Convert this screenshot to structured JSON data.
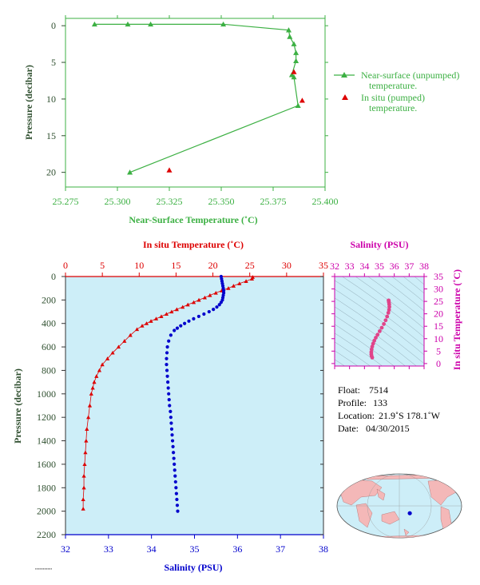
{
  "colors": {
    "green": "#3cb043",
    "axis_green": "#2f4f2f",
    "red": "#dd0000",
    "blue": "#0000cc",
    "magenta": "#cc00aa",
    "pink": "#e0448a",
    "panel_bg": "#cdeef8",
    "land": "#f4b8b8",
    "ocean": "#cdeef8"
  },
  "chart_data": [
    {
      "type": "line",
      "xlabel": "Near-Surface Temperature (˚C)",
      "ylabel": "Pressure (decibar)",
      "xlim": [
        25.275,
        25.4
      ],
      "ylim": [
        22,
        -1
      ],
      "x_ticks": [
        "25.275",
        "25.300",
        "25.325",
        "25.350",
        "25.375",
        "25.400"
      ],
      "y_ticks": [
        "0",
        "5",
        "10",
        "15",
        "20"
      ],
      "legend_placement": "right",
      "legend": [
        {
          "line1": "Near-surface (unpumped)",
          "line2": "temperature."
        },
        {
          "line1": "In situ (pumped)",
          "line2": "temperature."
        }
      ],
      "series": [
        {
          "name": "Near-surface (unpumped) temperature.",
          "x": [
            25.289,
            25.305,
            25.316,
            25.351,
            25.3825,
            25.383,
            25.385,
            25.386,
            25.386,
            25.384,
            25.385,
            25.387,
            25.306
          ],
          "y": [
            -0.2,
            -0.2,
            -0.2,
            -0.2,
            0.6,
            1.5,
            2.5,
            3.7,
            4.8,
            6.7,
            7.0,
            10.9,
            20.0
          ]
        },
        {
          "name": "In situ (pumped) temperature.",
          "x": [
            25.385,
            25.389,
            25.325
          ],
          "y": [
            6.3,
            10.2,
            19.7
          ]
        }
      ]
    },
    {
      "type": "scatter",
      "title_top": "In situ Temperature (˚C)",
      "xlabel_bottom": "Salinity (PSU)",
      "ylabel": "Pressure (decibar)",
      "temp_lim": [
        0,
        35
      ],
      "sal_lim": [
        32,
        38
      ],
      "ylim": [
        2200,
        0
      ],
      "temp_ticks": [
        "0",
        "5",
        "10",
        "15",
        "20",
        "25",
        "30",
        "35"
      ],
      "sal_ticks": [
        "32",
        "33",
        "34",
        "35",
        "36",
        "37",
        "38"
      ],
      "y_ticks": [
        "0",
        "200",
        "400",
        "600",
        "800",
        "1000",
        "1200",
        "1400",
        "1600",
        "1800",
        "2000",
        "2200"
      ],
      "temperature": {
        "pressure": [
          5,
          20,
          40,
          60,
          80,
          100,
          120,
          140,
          160,
          180,
          200,
          220,
          240,
          260,
          280,
          300,
          320,
          340,
          360,
          380,
          400,
          420,
          450,
          500,
          550,
          600,
          650,
          700,
          750,
          800,
          850,
          900,
          950,
          1000,
          1100,
          1200,
          1300,
          1400,
          1500,
          1600,
          1700,
          1800,
          1900,
          1980
        ],
        "values": [
          25.4,
          25.3,
          24.5,
          23.6,
          22.8,
          22.1,
          21.2,
          20.4,
          19.6,
          18.9,
          18.1,
          17.4,
          16.6,
          15.9,
          15.1,
          14.4,
          13.7,
          13.0,
          12.3,
          11.6,
          11.0,
          10.4,
          9.7,
          8.8,
          8.0,
          7.2,
          6.4,
          5.7,
          5.0,
          4.6,
          4.2,
          3.9,
          3.7,
          3.5,
          3.3,
          3.1,
          2.9,
          2.8,
          2.7,
          2.6,
          2.5,
          2.5,
          2.4,
          2.4
        ]
      },
      "salinity": {
        "pressure": [
          0,
          20,
          40,
          60,
          80,
          100,
          120,
          140,
          160,
          180,
          200,
          220,
          240,
          260,
          280,
          300,
          320,
          340,
          360,
          380,
          400,
          420,
          440,
          460,
          500,
          550,
          600,
          650,
          700,
          750,
          800,
          850,
          900,
          950,
          1000,
          1050,
          1100,
          1150,
          1200,
          1250,
          1300,
          1350,
          1400,
          1450,
          1500,
          1550,
          1600,
          1650,
          1700,
          1750,
          1800,
          1850,
          1900,
          1950,
          2000
        ],
        "values": [
          35.62,
          35.63,
          35.64,
          35.65,
          35.66,
          35.67,
          35.68,
          35.68,
          35.67,
          35.66,
          35.65,
          35.62,
          35.58,
          35.52,
          35.44,
          35.34,
          35.22,
          35.1,
          34.98,
          34.87,
          34.77,
          34.68,
          34.6,
          34.53,
          34.45,
          34.4,
          34.37,
          34.36,
          34.35,
          34.35,
          34.36,
          34.37,
          34.38,
          34.39,
          34.4,
          34.41,
          34.42,
          34.44,
          34.45,
          34.46,
          34.47,
          34.48,
          34.49,
          34.5,
          34.51,
          34.52,
          34.53,
          34.54,
          34.55,
          34.56,
          34.57,
          34.58,
          34.59,
          34.6,
          34.61
        ]
      }
    },
    {
      "type": "scatter",
      "title": "Salinity (PSU)",
      "ylabel": "In situ Temperature (˚C)",
      "xlim": [
        32,
        38
      ],
      "ylim": [
        -1,
        35
      ],
      "x_ticks": [
        "32",
        "33",
        "34",
        "35",
        "36",
        "37",
        "38"
      ],
      "y_ticks": [
        "0",
        "5",
        "10",
        "15",
        "20",
        "25",
        "30",
        "35"
      ],
      "salinity": [
        34.52,
        34.48,
        34.46,
        34.46,
        34.48,
        34.52,
        34.58,
        34.66,
        34.76,
        34.88,
        35.02,
        35.16,
        35.3,
        35.42,
        35.52,
        35.6,
        35.65,
        35.67,
        35.66,
        35.64,
        35.63,
        35.62
      ],
      "temperature": [
        2.4,
        3.0,
        3.7,
        4.6,
        5.7,
        6.8,
        8.0,
        9.2,
        10.4,
        11.6,
        13.0,
        14.4,
        15.9,
        17.4,
        18.9,
        20.4,
        21.6,
        22.8,
        23.8,
        24.6,
        25.2,
        25.4
      ]
    }
  ],
  "info": {
    "float_label": "Float:",
    "float_value": "7514",
    "profile_label": "Profile:",
    "profile_value": "133",
    "location_label": "Location:",
    "location_value": "21.9˚S  178.1˚W",
    "date_label": "Date:",
    "date_value": "04/30/2015"
  },
  "map": {
    "marker_lon": -178.1,
    "marker_lat": -21.9
  }
}
